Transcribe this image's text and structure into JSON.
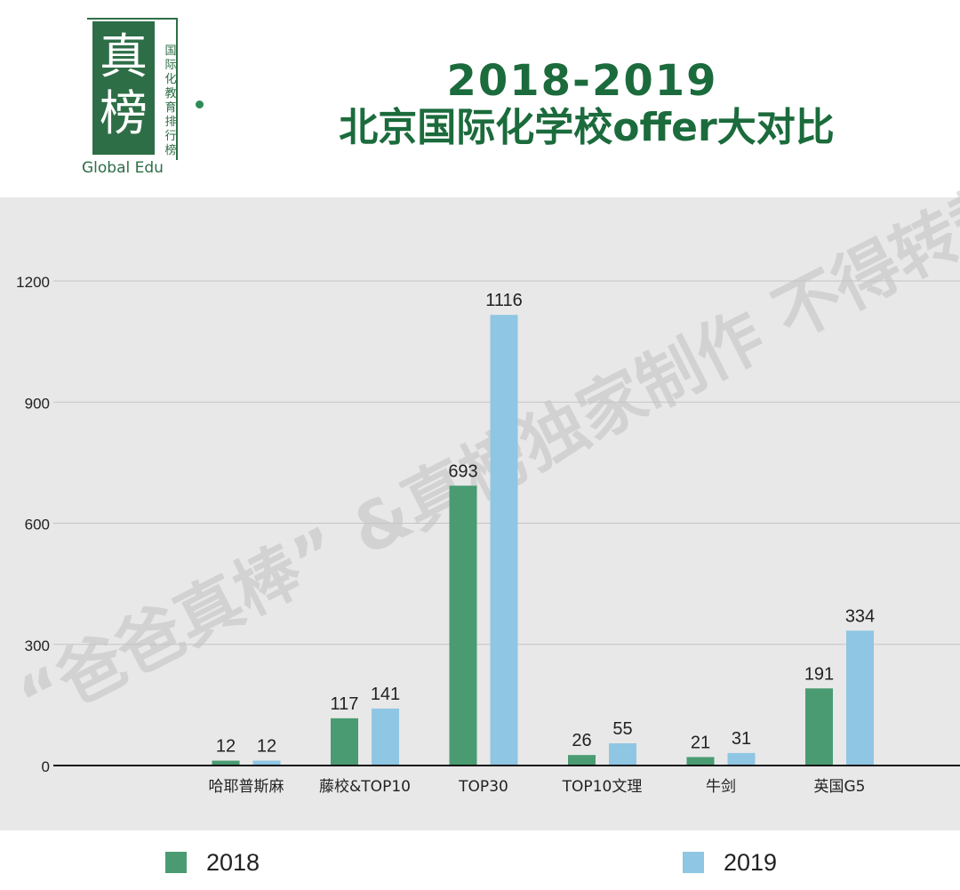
{
  "header": {
    "logo_main": "真榜",
    "logo_sub": "国际化教育排行榜",
    "logo_en": "Global Edu",
    "title_line1": "2018-2019",
    "title_line2": "北京国际化学校offer大对比"
  },
  "watermark": "“爸爸真棒” &真榜独家制作 不得转载",
  "colors": {
    "series_2018": "#4a9b72",
    "series_2019": "#8fc6e3",
    "title": "#1b6b3c",
    "plot_bg": "#e8e8e8"
  },
  "chart_data": {
    "type": "bar",
    "title": "",
    "xlabel": "",
    "ylabel": "",
    "ylim": [
      0,
      1200
    ],
    "yticks": [
      0,
      300,
      600,
      900,
      1200
    ],
    "grid": true,
    "legend_position": "bottom",
    "categories": [
      "哈耶普斯麻",
      "藤校&TOP10",
      "TOP30",
      "TOP10文理",
      "牛剑",
      "英国G5"
    ],
    "series": [
      {
        "name": "2018",
        "values": [
          12,
          117,
          693,
          26,
          21,
          191
        ]
      },
      {
        "name": "2019",
        "values": [
          12,
          141,
          1116,
          55,
          31,
          334
        ]
      }
    ]
  }
}
